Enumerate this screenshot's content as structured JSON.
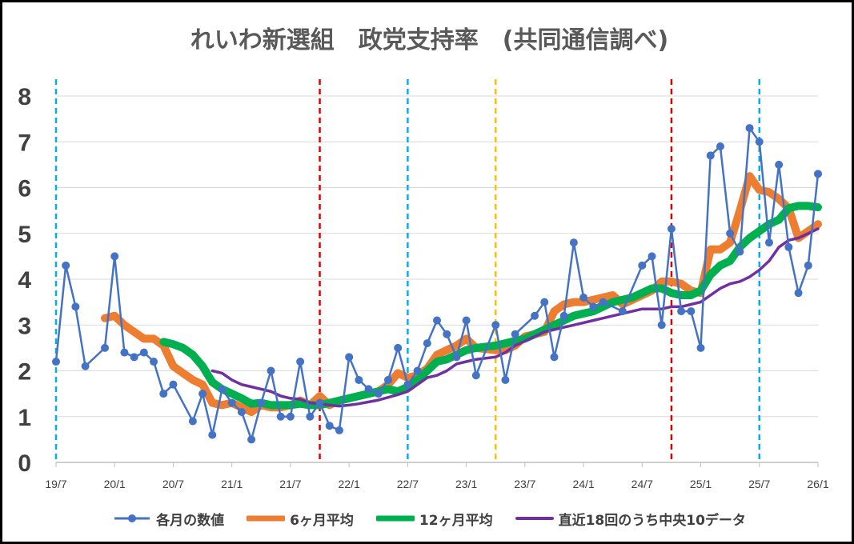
{
  "chart_data": {
    "type": "line",
    "title": "れいわ新選組　政党支持率　(共同通信調べ)",
    "xlabel": "",
    "ylabel": "",
    "ylim": [
      0,
      8
    ],
    "yticks": [
      "0",
      "1",
      "2",
      "3",
      "4",
      "5",
      "6",
      "7",
      "8"
    ],
    "xlim": [
      "2019-07",
      "2026-01"
    ],
    "xticks": [
      "19/7",
      "20/1",
      "20/7",
      "21/1",
      "21/7",
      "22/1",
      "22/7",
      "23/1",
      "23/7",
      "24/1",
      "24/7",
      "25/1",
      "25/7",
      "26/1"
    ],
    "grid": "horizontal",
    "legend_position": "bottom",
    "reference_lines": [
      {
        "x": "2019-07",
        "color": "#00B0F0",
        "style": "dashed"
      },
      {
        "x": "2021-10",
        "color": "#E00000",
        "style": "dashed"
      },
      {
        "x": "2022-07",
        "color": "#00B0F0",
        "style": "dashed"
      },
      {
        "x": "2023-04",
        "color": "#FFC000",
        "style": "dashed"
      },
      {
        "x": "2024-10",
        "color": "#E00000",
        "style": "dashed"
      },
      {
        "x": "2025-07",
        "color": "#00B0F0",
        "style": "dashed"
      }
    ],
    "series": [
      {
        "name": "各月の数値",
        "color": "#4472C4",
        "markers": true,
        "points": [
          [
            "2019-07",
            2.2
          ],
          [
            "2019-08",
            4.3
          ],
          [
            "2019-09",
            3.4
          ],
          [
            "2019-10",
            2.1
          ],
          [
            "2019-12",
            2.5
          ],
          [
            "2020-01",
            4.5
          ],
          [
            "2020-02",
            2.4
          ],
          [
            "2020-03",
            2.3
          ],
          [
            "2020-04",
            2.4
          ],
          [
            "2020-05",
            2.2
          ],
          [
            "2020-06",
            1.5
          ],
          [
            "2020-07",
            1.7
          ],
          [
            "2020-09",
            0.9
          ],
          [
            "2020-10",
            1.5
          ],
          [
            "2020-11",
            0.6
          ],
          [
            "2020-12",
            1.6
          ],
          [
            "2021-01",
            1.3
          ],
          [
            "2021-02",
            1.1
          ],
          [
            "2021-03",
            0.5
          ],
          [
            "2021-04",
            1.3
          ],
          [
            "2021-05",
            2.0
          ],
          [
            "2021-06",
            1.0
          ],
          [
            "2021-07",
            1.0
          ],
          [
            "2021-08",
            2.2
          ],
          [
            "2021-09",
            1.0
          ],
          [
            "2021-10",
            1.3
          ],
          [
            "2021-11",
            0.8
          ],
          [
            "2021-12",
            0.7
          ],
          [
            "2022-01",
            2.3
          ],
          [
            "2022-02",
            1.8
          ],
          [
            "2022-03",
            1.6
          ],
          [
            "2022-04",
            1.5
          ],
          [
            "2022-05",
            1.8
          ],
          [
            "2022-06",
            2.5
          ],
          [
            "2022-07",
            1.7
          ],
          [
            "2022-08",
            2.0
          ],
          [
            "2022-09",
            2.6
          ],
          [
            "2022-10",
            3.1
          ],
          [
            "2022-11",
            2.8
          ],
          [
            "2022-12",
            2.3
          ],
          [
            "2023-01",
            3.1
          ],
          [
            "2023-02",
            1.9
          ],
          [
            "2023-04",
            3.0
          ],
          [
            "2023-05",
            1.8
          ],
          [
            "2023-06",
            2.8
          ],
          [
            "2023-08",
            3.2
          ],
          [
            "2023-09",
            3.5
          ],
          [
            "2023-10",
            2.3
          ],
          [
            "2023-11",
            3.2
          ],
          [
            "2023-12",
            4.8
          ],
          [
            "2024-01",
            3.6
          ],
          [
            "2024-02",
            3.4
          ],
          [
            "2024-03",
            3.5
          ],
          [
            "2024-05",
            3.3
          ],
          [
            "2024-07",
            4.3
          ],
          [
            "2024-08",
            4.5
          ],
          [
            "2024-09",
            3.0
          ],
          [
            "2024-10",
            5.1
          ],
          [
            "2024-11",
            3.3
          ],
          [
            "2024-12",
            3.3
          ],
          [
            "2025-01",
            2.5
          ],
          [
            "2025-02",
            6.7
          ],
          [
            "2025-03",
            6.9
          ],
          [
            "2025-04",
            5.0
          ],
          [
            "2025-05",
            4.6
          ],
          [
            "2025-06",
            7.3
          ],
          [
            "2025-07",
            7.0
          ],
          [
            "2025-08",
            4.8
          ],
          [
            "2025-09",
            6.5
          ],
          [
            "2025-10",
            4.7
          ],
          [
            "2025-11",
            3.7
          ],
          [
            "2025-12",
            4.3
          ],
          [
            "2026-01",
            6.3
          ]
        ]
      },
      {
        "name": "6ヶ月平均",
        "color": "#ED7D31",
        "markers": false,
        "points": [
          [
            "2019-12",
            3.15
          ],
          [
            "2020-01",
            3.2
          ],
          [
            "2020-02",
            3.0
          ],
          [
            "2020-03",
            2.85
          ],
          [
            "2020-04",
            2.7
          ],
          [
            "2020-05",
            2.7
          ],
          [
            "2020-06",
            2.55
          ],
          [
            "2020-07",
            2.1
          ],
          [
            "2020-08",
            1.95
          ],
          [
            "2020-09",
            1.8
          ],
          [
            "2020-10",
            1.7
          ],
          [
            "2020-11",
            1.3
          ],
          [
            "2020-12",
            1.25
          ],
          [
            "2021-01",
            1.3
          ],
          [
            "2021-02",
            1.2
          ],
          [
            "2021-03",
            1.1
          ],
          [
            "2021-04",
            1.25
          ],
          [
            "2021-05",
            1.2
          ],
          [
            "2021-06",
            1.2
          ],
          [
            "2021-07",
            1.25
          ],
          [
            "2021-08",
            1.35
          ],
          [
            "2021-09",
            1.25
          ],
          [
            "2021-10",
            1.45
          ],
          [
            "2021-11",
            1.25
          ],
          [
            "2021-12",
            1.35
          ],
          [
            "2022-01",
            1.4
          ],
          [
            "2022-02",
            1.45
          ],
          [
            "2022-03",
            1.5
          ],
          [
            "2022-04",
            1.55
          ],
          [
            "2022-05",
            1.7
          ],
          [
            "2022-06",
            1.95
          ],
          [
            "2022-07",
            1.85
          ],
          [
            "2022-08",
            1.9
          ],
          [
            "2022-09",
            2.05
          ],
          [
            "2022-10",
            2.35
          ],
          [
            "2022-11",
            2.45
          ],
          [
            "2022-12",
            2.55
          ],
          [
            "2023-01",
            2.7
          ],
          [
            "2023-02",
            2.5
          ],
          [
            "2023-04",
            2.45
          ],
          [
            "2023-05",
            2.45
          ],
          [
            "2023-06",
            2.55
          ],
          [
            "2023-07",
            2.75
          ],
          [
            "2023-08",
            2.8
          ],
          [
            "2023-09",
            2.85
          ],
          [
            "2023-10",
            3.3
          ],
          [
            "2023-11",
            3.45
          ],
          [
            "2023-12",
            3.5
          ],
          [
            "2024-01",
            3.5
          ],
          [
            "2024-02",
            3.55
          ],
          [
            "2024-03",
            3.6
          ],
          [
            "2024-04",
            3.65
          ],
          [
            "2024-05",
            3.45
          ],
          [
            "2024-06",
            3.55
          ],
          [
            "2024-07",
            3.65
          ],
          [
            "2024-08",
            3.75
          ],
          [
            "2024-09",
            3.95
          ],
          [
            "2024-10",
            3.95
          ],
          [
            "2024-11",
            3.9
          ],
          [
            "2024-12",
            3.75
          ],
          [
            "2025-01",
            3.7
          ],
          [
            "2025-02",
            4.65
          ],
          [
            "2025-03",
            4.65
          ],
          [
            "2025-04",
            4.8
          ],
          [
            "2025-05",
            5.5
          ],
          [
            "2025-06",
            6.25
          ],
          [
            "2025-07",
            5.95
          ],
          [
            "2025-08",
            5.9
          ],
          [
            "2025-09",
            5.75
          ],
          [
            "2025-10",
            5.55
          ],
          [
            "2025-11",
            4.9
          ],
          [
            "2025-12",
            5.05
          ],
          [
            "2026-01",
            5.2
          ]
        ]
      },
      {
        "name": "12ヶ月平均",
        "color": "#00B050",
        "markers": false,
        "points": [
          [
            "2020-06",
            2.63
          ],
          [
            "2020-07",
            2.58
          ],
          [
            "2020-08",
            2.5
          ],
          [
            "2020-09",
            2.35
          ],
          [
            "2020-10",
            2.1
          ],
          [
            "2020-11",
            1.75
          ],
          [
            "2020-12",
            1.6
          ],
          [
            "2021-01",
            1.5
          ],
          [
            "2021-02",
            1.4
          ],
          [
            "2021-03",
            1.28
          ],
          [
            "2021-04",
            1.3
          ],
          [
            "2021-05",
            1.25
          ],
          [
            "2021-06",
            1.25
          ],
          [
            "2021-07",
            1.25
          ],
          [
            "2021-08",
            1.28
          ],
          [
            "2021-09",
            1.25
          ],
          [
            "2021-10",
            1.25
          ],
          [
            "2021-11",
            1.3
          ],
          [
            "2021-12",
            1.35
          ],
          [
            "2022-01",
            1.4
          ],
          [
            "2022-02",
            1.45
          ],
          [
            "2022-03",
            1.5
          ],
          [
            "2022-04",
            1.55
          ],
          [
            "2022-05",
            1.6
          ],
          [
            "2022-06",
            1.55
          ],
          [
            "2022-07",
            1.65
          ],
          [
            "2022-08",
            1.8
          ],
          [
            "2022-09",
            2.0
          ],
          [
            "2022-10",
            2.2
          ],
          [
            "2022-11",
            2.25
          ],
          [
            "2022-12",
            2.35
          ],
          [
            "2023-01",
            2.45
          ],
          [
            "2023-02",
            2.5
          ],
          [
            "2023-04",
            2.55
          ],
          [
            "2023-05",
            2.6
          ],
          [
            "2023-06",
            2.65
          ],
          [
            "2023-07",
            2.7
          ],
          [
            "2023-08",
            2.8
          ],
          [
            "2023-09",
            2.9
          ],
          [
            "2023-10",
            3.0
          ],
          [
            "2023-11",
            3.1
          ],
          [
            "2023-12",
            3.2
          ],
          [
            "2024-01",
            3.25
          ],
          [
            "2024-02",
            3.3
          ],
          [
            "2024-03",
            3.4
          ],
          [
            "2024-04",
            3.5
          ],
          [
            "2024-05",
            3.55
          ],
          [
            "2024-06",
            3.6
          ],
          [
            "2024-07",
            3.7
          ],
          [
            "2024-08",
            3.8
          ],
          [
            "2024-09",
            3.8
          ],
          [
            "2024-10",
            3.7
          ],
          [
            "2024-11",
            3.65
          ],
          [
            "2024-12",
            3.65
          ],
          [
            "2025-01",
            3.75
          ],
          [
            "2025-02",
            4.1
          ],
          [
            "2025-03",
            4.3
          ],
          [
            "2025-04",
            4.4
          ],
          [
            "2025-05",
            4.7
          ],
          [
            "2025-06",
            4.9
          ],
          [
            "2025-07",
            5.05
          ],
          [
            "2025-08",
            5.2
          ],
          [
            "2025-09",
            5.3
          ],
          [
            "2025-10",
            5.55
          ],
          [
            "2025-11",
            5.6
          ],
          [
            "2025-12",
            5.6
          ],
          [
            "2026-01",
            5.57
          ]
        ]
      },
      {
        "name": "直近18回のうち中央10データ",
        "color": "#7030A0",
        "markers": false,
        "points": [
          [
            "2020-11",
            2.0
          ],
          [
            "2020-12",
            1.95
          ],
          [
            "2021-01",
            1.8
          ],
          [
            "2021-02",
            1.7
          ],
          [
            "2021-03",
            1.65
          ],
          [
            "2021-04",
            1.6
          ],
          [
            "2021-05",
            1.55
          ],
          [
            "2021-06",
            1.45
          ],
          [
            "2021-07",
            1.4
          ],
          [
            "2021-08",
            1.38
          ],
          [
            "2021-09",
            1.3
          ],
          [
            "2021-10",
            1.28
          ],
          [
            "2021-11",
            1.25
          ],
          [
            "2021-12",
            1.23
          ],
          [
            "2022-01",
            1.25
          ],
          [
            "2022-02",
            1.28
          ],
          [
            "2022-03",
            1.32
          ],
          [
            "2022-04",
            1.36
          ],
          [
            "2022-05",
            1.42
          ],
          [
            "2022-06",
            1.48
          ],
          [
            "2022-07",
            1.55
          ],
          [
            "2022-08",
            1.7
          ],
          [
            "2022-09",
            1.85
          ],
          [
            "2022-10",
            1.9
          ],
          [
            "2022-11",
            2.0
          ],
          [
            "2022-12",
            2.15
          ],
          [
            "2023-01",
            2.2
          ],
          [
            "2023-02",
            2.25
          ],
          [
            "2023-04",
            2.3
          ],
          [
            "2023-05",
            2.4
          ],
          [
            "2023-06",
            2.55
          ],
          [
            "2023-07",
            2.65
          ],
          [
            "2023-08",
            2.75
          ],
          [
            "2023-09",
            2.85
          ],
          [
            "2023-10",
            2.9
          ],
          [
            "2023-11",
            2.95
          ],
          [
            "2023-12",
            3.0
          ],
          [
            "2024-01",
            3.05
          ],
          [
            "2024-02",
            3.1
          ],
          [
            "2024-03",
            3.15
          ],
          [
            "2024-04",
            3.2
          ],
          [
            "2024-05",
            3.25
          ],
          [
            "2024-06",
            3.3
          ],
          [
            "2024-07",
            3.35
          ],
          [
            "2024-08",
            3.35
          ],
          [
            "2024-09",
            3.35
          ],
          [
            "2024-10",
            3.4
          ],
          [
            "2024-11",
            3.4
          ],
          [
            "2024-12",
            3.45
          ],
          [
            "2025-01",
            3.5
          ],
          [
            "2025-02",
            3.65
          ],
          [
            "2025-03",
            3.8
          ],
          [
            "2025-04",
            3.9
          ],
          [
            "2025-05",
            3.95
          ],
          [
            "2025-06",
            4.05
          ],
          [
            "2025-07",
            4.2
          ],
          [
            "2025-08",
            4.4
          ],
          [
            "2025-09",
            4.7
          ],
          [
            "2025-10",
            4.85
          ],
          [
            "2025-11",
            4.9
          ],
          [
            "2025-12",
            5.0
          ],
          [
            "2026-01",
            5.1
          ]
        ]
      }
    ]
  }
}
